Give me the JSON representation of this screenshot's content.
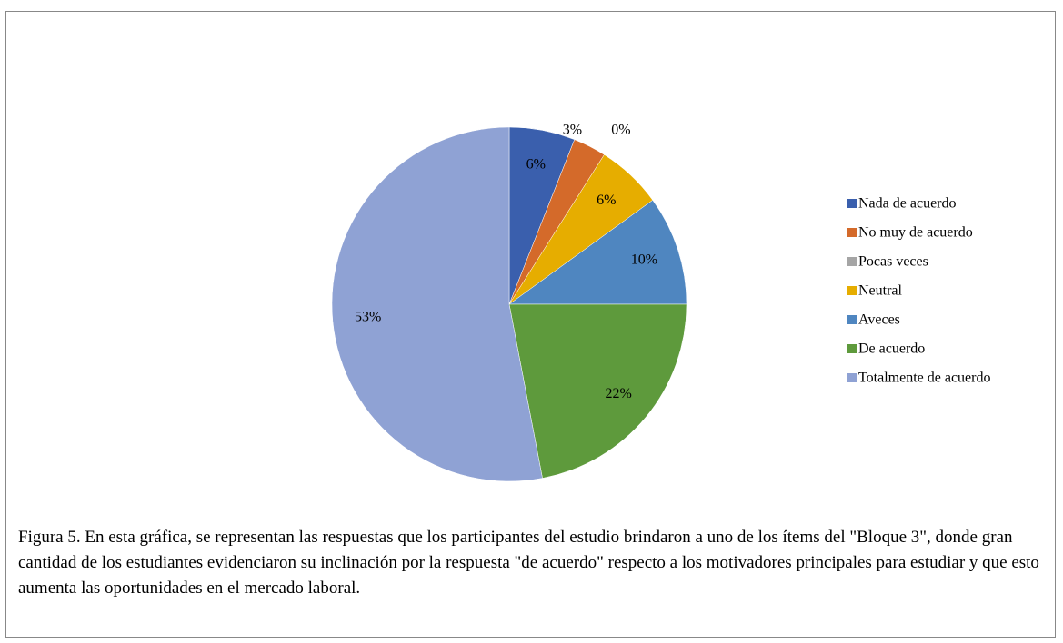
{
  "chart_data": {
    "type": "pie",
    "categories": [
      "Nada de acuerdo",
      "No muy de acuerdo",
      "Pocas veces",
      "Neutral",
      "Aveces",
      "De acuerdo",
      "Totalmente de acuerdo"
    ],
    "values": [
      6,
      3,
      0,
      6,
      10,
      22,
      53
    ],
    "value_labels": [
      "6%",
      "3%",
      "0%",
      "6%",
      "10%",
      "22%",
      "53%"
    ],
    "colors": [
      "#3a5fad",
      "#d46a2a",
      "#a5a5a5",
      "#e6ad00",
      "#4f86c0",
      "#5e9a3c",
      "#8fa2d4"
    ],
    "legend": "right"
  },
  "caption": "Figura 5. En esta gráfica, se representan las respuestas que los participantes del estudio brindaron a uno de los ítems del \"Bloque 3\", donde gran cantidad de los estudiantes evidenciaron su inclinación por la respuesta \"de acuerdo\" respecto a los motivadores principales para estudiar y que esto aumenta las oportunidades en el mercado laboral."
}
